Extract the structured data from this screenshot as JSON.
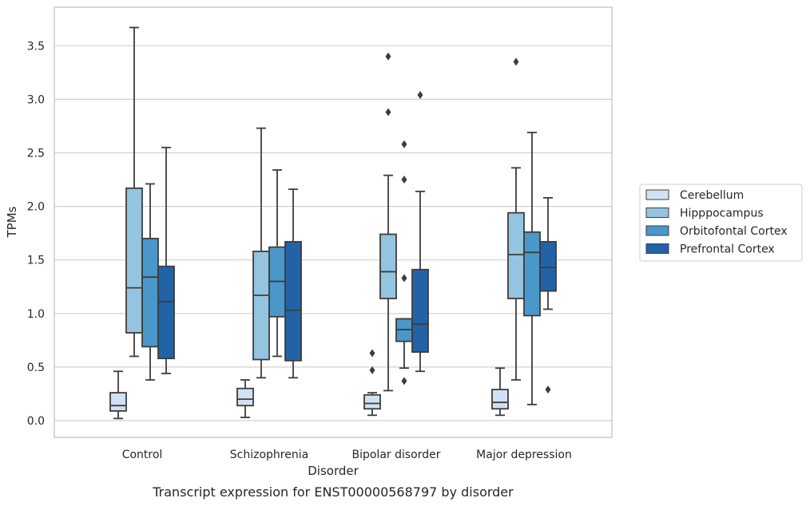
{
  "chart_data": {
    "type": "box",
    "title": "",
    "caption": "Transcript expression for ENST00000568797 by disorder",
    "xlabel": "Disorder",
    "ylabel": "TPMs",
    "ylim": [
      -0.15,
      3.9
    ],
    "yticks": [
      "0.0",
      "0.5",
      "1.0",
      "1.5",
      "2.0",
      "2.5",
      "3.0",
      "3.5"
    ],
    "grid": "horizontal",
    "legend_position": "right",
    "categories": [
      "Control",
      "Schizophrenia",
      "Bipolar disorder",
      "Major depression"
    ],
    "series": [
      {
        "name": "Cerebellum",
        "color": "#d0e1f2",
        "boxes": [
          {
            "whislo": 0.02,
            "q1": 0.09,
            "med": 0.14,
            "q3": 0.26,
            "whishi": 0.46,
            "fliers": []
          },
          {
            "whislo": 0.03,
            "q1": 0.14,
            "med": 0.2,
            "q3": 0.3,
            "whishi": 0.38,
            "fliers": []
          },
          {
            "whislo": 0.05,
            "q1": 0.11,
            "med": 0.16,
            "q3": 0.24,
            "whishi": 0.26,
            "fliers": [
              0.47,
              0.63
            ]
          },
          {
            "whislo": 0.05,
            "q1": 0.11,
            "med": 0.17,
            "q3": 0.29,
            "whishi": 0.49,
            "fliers": []
          }
        ]
      },
      {
        "name": "Hipppocampus",
        "color": "#94c4df",
        "boxes": [
          {
            "whislo": 0.6,
            "q1": 0.82,
            "med": 1.24,
            "q3": 2.17,
            "whishi": 3.67,
            "fliers": []
          },
          {
            "whislo": 0.4,
            "q1": 0.57,
            "med": 1.17,
            "q3": 1.58,
            "whishi": 2.73,
            "fliers": []
          },
          {
            "whislo": 0.28,
            "q1": 1.14,
            "med": 1.39,
            "q3": 1.74,
            "whishi": 2.29,
            "fliers": [
              2.88,
              3.4
            ]
          },
          {
            "whislo": 0.38,
            "q1": 1.14,
            "med": 1.55,
            "q3": 1.94,
            "whishi": 2.36,
            "fliers": [
              3.35
            ]
          }
        ]
      },
      {
        "name": "Orbitofontal Cortex",
        "color": "#4a98c9",
        "boxes": [
          {
            "whislo": 0.38,
            "q1": 0.69,
            "med": 1.34,
            "q3": 1.7,
            "whishi": 2.21,
            "fliers": []
          },
          {
            "whislo": 0.6,
            "q1": 0.97,
            "med": 1.3,
            "q3": 1.62,
            "whishi": 2.34,
            "fliers": []
          },
          {
            "whislo": 0.49,
            "q1": 0.74,
            "med": 0.85,
            "q3": 0.95,
            "whishi": 0.95,
            "fliers": [
              0.37,
              1.33,
              2.25,
              2.58
            ]
          },
          {
            "whislo": 0.15,
            "q1": 0.98,
            "med": 1.57,
            "q3": 1.76,
            "whishi": 2.69,
            "fliers": []
          }
        ]
      },
      {
        "name": "Prefrontal Cortex",
        "color": "#2263a7",
        "boxes": [
          {
            "whislo": 0.44,
            "q1": 0.58,
            "med": 1.11,
            "q3": 1.44,
            "whishi": 2.55,
            "fliers": []
          },
          {
            "whislo": 0.4,
            "q1": 0.56,
            "med": 1.03,
            "q3": 1.67,
            "whishi": 2.16,
            "fliers": []
          },
          {
            "whislo": 0.46,
            "q1": 0.64,
            "med": 0.9,
            "q3": 1.41,
            "whishi": 2.14,
            "fliers": [
              3.04
            ]
          },
          {
            "whislo": 1.04,
            "q1": 1.21,
            "med": 1.43,
            "q3": 1.67,
            "whishi": 2.08,
            "fliers": [
              0.29
            ]
          }
        ]
      }
    ]
  },
  "colors": {
    "box_edge": "#3d3d3d",
    "grid": "#d0d0d0",
    "frame": "#cccccc",
    "background": "#ffffff"
  }
}
